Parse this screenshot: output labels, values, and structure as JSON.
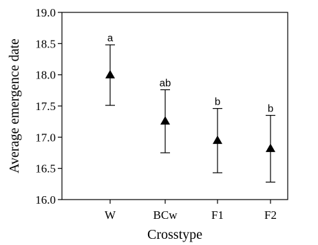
{
  "chart_data": {
    "type": "scatter",
    "xlabel": "Crosstype",
    "ylabel": "Average emergence date",
    "ylim": [
      16.0,
      19.0
    ],
    "yticks": [
      "16.0",
      "16.5",
      "17.0",
      "17.5",
      "18.0",
      "18.5",
      "19.0"
    ],
    "categories": [
      "W",
      "BCw",
      "F1",
      "F2"
    ],
    "means": [
      18.0,
      17.26,
      16.95,
      16.82
    ],
    "lower": [
      17.51,
      16.75,
      16.43,
      16.28
    ],
    "upper": [
      18.48,
      17.76,
      17.46,
      17.35
    ],
    "significance": [
      "a",
      "ab",
      "b",
      "b"
    ],
    "marker": "filled-triangle",
    "grid": false,
    "color": "#000000"
  }
}
